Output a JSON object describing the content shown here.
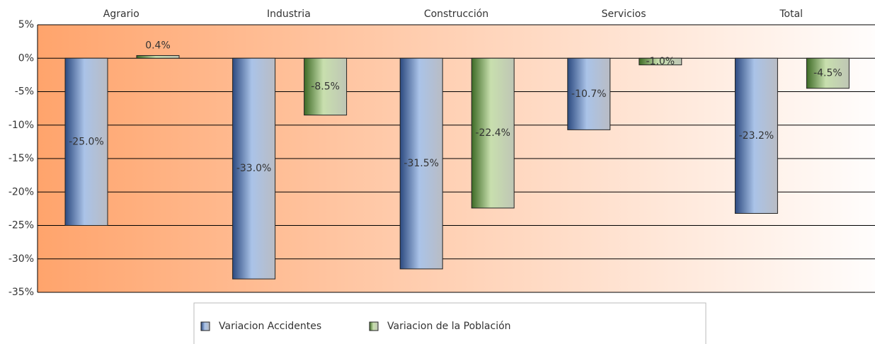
{
  "chart_data": {
    "type": "bar",
    "categories": [
      "Agrario",
      "Industria",
      "Construcción",
      "Servicios",
      "Total"
    ],
    "series": [
      {
        "name": "Variacion Accidentes",
        "color": "#2c4a80",
        "values": [
          -25.0,
          -33.0,
          -31.5,
          -10.7,
          -23.2
        ],
        "value_labels": [
          "-25.0%",
          "-33.0%",
          "-31.5%",
          "-10.7%",
          "-23.2%"
        ]
      },
      {
        "name": "Variacion de la Población",
        "color": "#3d6a25",
        "values": [
          0.4,
          -8.5,
          -22.4,
          -1.0,
          -4.5
        ],
        "value_labels": [
          "0.4%",
          "-8.5%",
          "-22.4%",
          "-1.0%",
          "-4.5%"
        ]
      }
    ],
    "ylim": [
      -35,
      5
    ],
    "yticks": [
      {
        "value": 5,
        "label": "5%"
      },
      {
        "value": 0,
        "label": "0%"
      },
      {
        "value": -5,
        "label": "-5%"
      },
      {
        "value": -10,
        "label": "-10%"
      },
      {
        "value": -15,
        "label": "-15%"
      },
      {
        "value": -20,
        "label": "-20%"
      },
      {
        "value": -25,
        "label": "-25%"
      },
      {
        "value": -30,
        "label": "-30%"
      },
      {
        "value": -35,
        "label": "-35%"
      }
    ],
    "grid": true,
    "legend": "bottom"
  }
}
